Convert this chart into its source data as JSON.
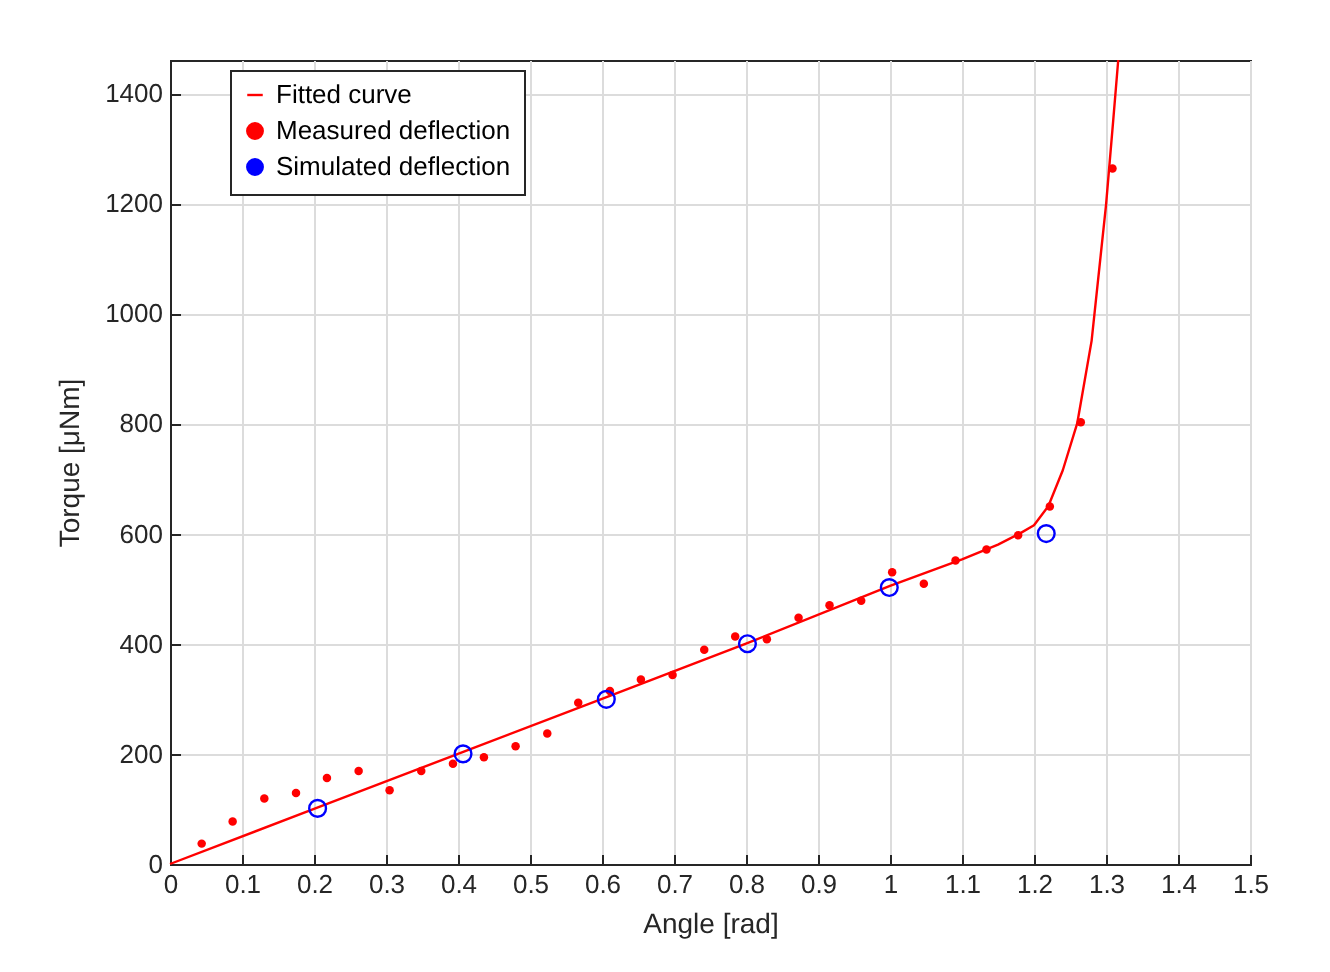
{
  "chart_data": {
    "type": "scatter",
    "xlabel": "Angle [rad]",
    "ylabel": "Torque [μNm]",
    "xlim": [
      0,
      1.5
    ],
    "xticks": [
      0,
      0.1,
      0.2,
      0.3,
      0.4,
      0.5,
      0.6,
      0.7,
      0.8,
      0.9,
      1,
      1.1,
      1.2,
      1.3,
      1.4,
      1.5
    ],
    "ylim": [
      0,
      1460
    ],
    "yticks": [
      0,
      200,
      400,
      600,
      800,
      1000,
      1200,
      1400
    ],
    "grid": true,
    "legend": "top left",
    "series": [
      {
        "name": "Fitted curve",
        "type": "line",
        "marker": "none",
        "line_style": "solid",
        "color": "#ff0000",
        "x": [
          0,
          0.2,
          0.4,
          0.6,
          0.8,
          1.0,
          1.1,
          1.15,
          1.18,
          1.2,
          1.22,
          1.24,
          1.26,
          1.28,
          1.3,
          1.31,
          1.317
        ],
        "values": [
          0,
          100,
          200,
          300,
          400,
          505,
          553,
          580,
          600,
          615,
          650,
          715,
          800,
          950,
          1196,
          1350,
          1460
        ]
      },
      {
        "name": "Measured deflection",
        "type": "scatter",
        "marker": "circle",
        "color": "#ff0000",
        "x": [
          0.044,
          0.087,
          0.131,
          0.175,
          0.218,
          0.262,
          0.305,
          0.349,
          0.393,
          0.436,
          0.48,
          0.524,
          0.567,
          0.611,
          0.654,
          0.698,
          0.742,
          0.785,
          0.829,
          0.873,
          0.916,
          0.96,
          1.003,
          1.047,
          1.091,
          1.134,
          1.178,
          1.222,
          1.265,
          1.309
        ],
        "values": [
          37,
          77,
          119,
          129,
          156,
          169,
          134,
          169,
          182,
          194,
          214,
          237,
          293,
          314,
          335,
          343,
          389,
          413,
          408,
          447,
          470,
          478,
          530,
          509,
          551,
          571,
          597,
          649,
          802,
          1263
        ]
      },
      {
        "name": "Simulated deflection",
        "type": "scatter",
        "marker": "circle",
        "color": "#0000ff",
        "x": [
          0.205,
          0.407,
          0.606,
          0.802,
          0.999,
          1.217
        ],
        "values": [
          101,
          200,
          299,
          400,
          502,
          600
        ]
      }
    ]
  }
}
